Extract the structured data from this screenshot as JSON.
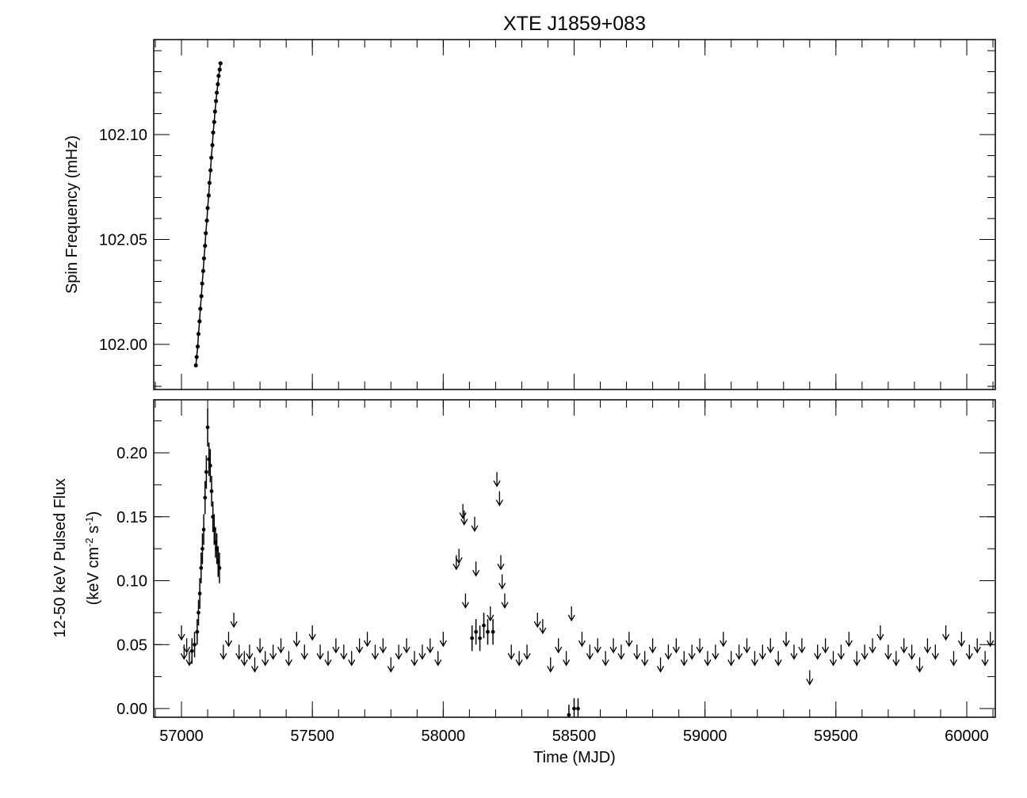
{
  "chart_data": [
    {
      "type": "line",
      "title": "XTE J1859+083",
      "y_label": "Spin Frequency (mHz)",
      "color": "#000000",
      "x": [
        57055,
        57058,
        57062,
        57065,
        57069,
        57072,
        57076,
        57079,
        57083,
        57086,
        57090,
        57093,
        57097,
        57100,
        57104,
        57107,
        57111,
        57114,
        57118,
        57121,
        57125,
        57128,
        57132,
        57135,
        57139,
        57142,
        57146,
        57149
      ],
      "values": [
        101.99,
        101.994,
        101.999,
        102.005,
        102.011,
        102.017,
        102.023,
        102.029,
        102.035,
        102.041,
        102.047,
        102.053,
        102.059,
        102.065,
        102.071,
        102.077,
        102.083,
        102.089,
        102.095,
        102.101,
        102.106,
        102.111,
        102.116,
        102.12,
        102.124,
        102.128,
        102.131,
        102.134
      ],
      "xlim": [
        56894,
        60109
      ],
      "ylim": [
        101.9785,
        102.1453
      ],
      "xticks": [
        57000,
        57500,
        58000,
        58500,
        59000,
        59500,
        60000
      ],
      "yticks": [
        {
          "value": 102.0,
          "label": "102.00"
        },
        {
          "value": 102.05,
          "label": "102.05"
        },
        {
          "value": 102.1,
          "label": "102.10"
        }
      ],
      "yminorticks": [
        101.98,
        101.99,
        102.0,
        102.01,
        102.02,
        102.03,
        102.04,
        102.05,
        102.06,
        102.07,
        102.08,
        102.09,
        102.1,
        102.11,
        102.12,
        102.13,
        102.14
      ]
    },
    {
      "type": "scatter",
      "x_label": "Time (MJD)",
      "y_label": [
        "12-50 keV Pulsed Flux",
        [
          "(keV cm",
          "-2",
          " s",
          "-1",
          ")"
        ]
      ],
      "color": "#000000",
      "xlim": [
        56894,
        60109
      ],
      "ylim": [
        -0.0068,
        0.2415
      ],
      "xticks": [
        57000,
        57500,
        58000,
        58500,
        59000,
        59500,
        60000
      ],
      "xminorticks": [
        56900,
        57000,
        57100,
        57200,
        57300,
        57400,
        57500,
        57600,
        57700,
        57800,
        57900,
        58000,
        58100,
        58200,
        58300,
        58400,
        58500,
        58600,
        58700,
        58800,
        58900,
        59000,
        59100,
        59200,
        59300,
        59400,
        59500,
        59600,
        59700,
        59800,
        59900,
        60000,
        60100
      ],
      "yticks": [
        {
          "value": 0,
          "label": "0.00"
        },
        {
          "value": 0.05,
          "label": "0.05"
        },
        {
          "value": 0.1,
          "label": "0.10"
        },
        {
          "value": 0.15,
          "label": "0.15"
        },
        {
          "value": 0.2,
          "label": "0.20"
        }
      ],
      "yminorticks": [
        0,
        0.025,
        0.05,
        0.075,
        0.1,
        0.125,
        0.15,
        0.175,
        0.2,
        0.225
      ],
      "series": [
        {
          "kind": "detection",
          "x": [
            57040,
            57050,
            57060,
            57065,
            57070,
            57075,
            57080,
            57085,
            57090,
            57095,
            57100,
            57105,
            57110,
            57115,
            57120,
            57125,
            57130,
            57135,
            57140,
            57145,
            58110,
            58125,
            58140,
            58155,
            58170,
            58190,
            58480,
            58500,
            58515
          ],
          "values": [
            0.045,
            0.05,
            0.06,
            0.075,
            0.09,
            0.11,
            0.125,
            0.14,
            0.165,
            0.185,
            0.22,
            0.195,
            0.19,
            0.17,
            0.15,
            0.14,
            0.13,
            0.125,
            0.115,
            0.11,
            0.055,
            0.06,
            0.055,
            0.065,
            0.06,
            0.06,
            -0.005,
            0.0,
            0.0
          ],
          "errors": [
            0.01,
            0.01,
            0.01,
            0.01,
            0.012,
            0.012,
            0.012,
            0.012,
            0.013,
            0.013,
            0.015,
            0.013,
            0.013,
            0.012,
            0.012,
            0.012,
            0.012,
            0.012,
            0.012,
            0.012,
            0.01,
            0.01,
            0.01,
            0.01,
            0.01,
            0.01,
            0.008,
            0.008,
            0.008
          ]
        },
        {
          "kind": "upper_limit",
          "x": [
            57000,
            57010,
            57020,
            57030,
            57160,
            57180,
            57200,
            57220,
            57240,
            57260,
            57280,
            57300,
            57320,
            57350,
            57380,
            57410,
            57440,
            57470,
            57500,
            57530,
            57560,
            57590,
            57620,
            57650,
            57680,
            57710,
            57740,
            57770,
            57800,
            57830,
            57860,
            57890,
            57920,
            57950,
            57980,
            58000,
            58050,
            58060,
            58075,
            58080,
            58085,
            58120,
            58125,
            58180,
            58205,
            58215,
            58220,
            58225,
            58235,
            58260,
            58290,
            58320,
            58360,
            58380,
            58410,
            58440,
            58470,
            58490,
            58530,
            58560,
            58590,
            58620,
            58650,
            58680,
            58710,
            58740,
            58770,
            58800,
            58830,
            58860,
            58890,
            58920,
            58950,
            58980,
            59010,
            59040,
            59070,
            59100,
            59130,
            59160,
            59190,
            59220,
            59250,
            59280,
            59310,
            59340,
            59370,
            59400,
            59430,
            59460,
            59490,
            59520,
            59550,
            59580,
            59610,
            59640,
            59670,
            59700,
            59730,
            59760,
            59790,
            59820,
            59850,
            59880,
            59920,
            59950,
            59980,
            60010,
            60040,
            60070,
            60090
          ],
          "values": [
            0.065,
            0.05,
            0.055,
            0.045,
            0.05,
            0.06,
            0.075,
            0.05,
            0.045,
            0.05,
            0.04,
            0.055,
            0.045,
            0.05,
            0.055,
            0.045,
            0.06,
            0.05,
            0.065,
            0.05,
            0.045,
            0.055,
            0.05,
            0.045,
            0.055,
            0.06,
            0.05,
            0.055,
            0.04,
            0.05,
            0.055,
            0.045,
            0.05,
            0.055,
            0.045,
            0.06,
            0.12,
            0.125,
            0.16,
            0.155,
            0.09,
            0.15,
            0.115,
            0.08,
            0.185,
            0.17,
            0.12,
            0.105,
            0.09,
            0.05,
            0.045,
            0.05,
            0.075,
            0.07,
            0.04,
            0.055,
            0.045,
            0.08,
            0.06,
            0.05,
            0.055,
            0.045,
            0.055,
            0.05,
            0.06,
            0.05,
            0.045,
            0.055,
            0.04,
            0.05,
            0.055,
            0.045,
            0.05,
            0.055,
            0.045,
            0.05,
            0.06,
            0.045,
            0.05,
            0.055,
            0.045,
            0.05,
            0.055,
            0.045,
            0.06,
            0.05,
            0.055,
            0.03,
            0.05,
            0.055,
            0.045,
            0.05,
            0.06,
            0.045,
            0.05,
            0.055,
            0.065,
            0.05,
            0.045,
            0.055,
            0.05,
            0.04,
            0.055,
            0.05,
            0.065,
            0.045,
            0.06,
            0.05,
            0.055,
            0.045,
            0.06
          ]
        }
      ]
    }
  ]
}
